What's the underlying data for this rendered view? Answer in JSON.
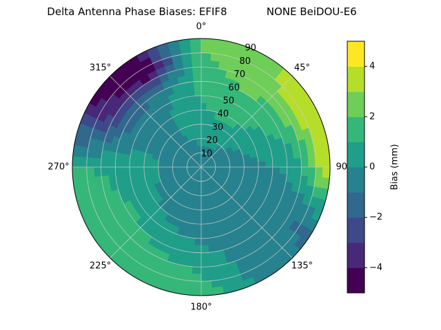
{
  "figure": {
    "background": "#ffffff"
  },
  "chart_data": {
    "type": "heatmap",
    "projection": "polar-skyplot",
    "title": "Delta Antenna Phase Biases: EFIF8            NONE BeiDOU-E6",
    "rmax": 90,
    "grid_color": "#cccccc",
    "angular_ticks": [
      {
        "deg": 0,
        "label": "0°"
      },
      {
        "deg": 45,
        "label": "45°"
      },
      {
        "deg": 90,
        "label": "90°"
      },
      {
        "deg": 135,
        "label": "135°"
      },
      {
        "deg": 180,
        "label": "180°"
      },
      {
        "deg": 225,
        "label": "225°"
      },
      {
        "deg": 270,
        "label": "270°"
      },
      {
        "deg": 315,
        "label": "315°"
      }
    ],
    "radial_ticks": [
      10,
      20,
      30,
      40,
      50,
      60,
      70,
      80,
      90
    ],
    "radial_label_azimuth_deg": 22.5,
    "levels": [
      -5,
      -4,
      -3,
      -2,
      -1,
      0,
      1,
      2,
      3,
      4,
      5
    ],
    "level_colors": [
      "#440154",
      "#482878",
      "#3e4989",
      "#31688e",
      "#26828e",
      "#1f9e89",
      "#35b779",
      "#6ece58",
      "#b5de2b",
      "#fde725"
    ],
    "azimuth_bins_deg": [
      0,
      30,
      60,
      90,
      120,
      150,
      180,
      210,
      240,
      270,
      300,
      330
    ],
    "radius_bin_centers": [
      5,
      15,
      25,
      35,
      45,
      55,
      65,
      75,
      85
    ],
    "bias_values_mm": [
      [
        -0.5,
        -0.5,
        -0.5,
        -0.5,
        -0.5,
        -0.5,
        -0.5,
        -0.5,
        -0.5,
        -0.5,
        -0.5,
        -0.5
      ],
      [
        0.0,
        0.0,
        -0.5,
        -0.5,
        -0.5,
        -0.5,
        -0.5,
        -0.5,
        -0.5,
        -0.5,
        -0.5,
        -0.5
      ],
      [
        0.5,
        0.5,
        0.0,
        -0.5,
        -0.5,
        -0.5,
        -0.5,
        -0.5,
        -0.5,
        -0.5,
        -0.5,
        0.0
      ],
      [
        0.5,
        1.2,
        0.5,
        -0.5,
        -0.5,
        -0.5,
        -0.5,
        -0.5,
        0.0,
        0.5,
        -0.5,
        0.0
      ],
      [
        1.0,
        1.5,
        0.8,
        0.0,
        -0.5,
        -0.5,
        -0.5,
        0.0,
        0.5,
        0.5,
        -0.5,
        0.0
      ],
      [
        1.2,
        1.8,
        1.2,
        0.0,
        -0.5,
        -0.5,
        0.0,
        0.5,
        1.0,
        0.5,
        -1.0,
        -0.5
      ],
      [
        1.5,
        2.2,
        2.0,
        0.5,
        -0.8,
        -0.5,
        0.5,
        1.0,
        1.5,
        0.8,
        -2.0,
        -2.0
      ],
      [
        1.8,
        2.8,
        3.2,
        1.5,
        -1.0,
        -0.5,
        1.0,
        1.5,
        1.5,
        1.0,
        -3.5,
        -5.0
      ],
      [
        2.0,
        2.5,
        3.8,
        3.6,
        -1.2,
        -0.5,
        1.5,
        1.8,
        1.8,
        1.0,
        -4.0,
        -4.5
      ]
    ],
    "colorbar": {
      "label": "Bias (mm)",
      "vmin": -5,
      "vmax": 5,
      "ticks": [
        {
          "value": 4,
          "label": "4"
        },
        {
          "value": 2,
          "label": "2"
        },
        {
          "value": 0,
          "label": "0"
        },
        {
          "value": -2,
          "label": "−2"
        },
        {
          "value": -4,
          "label": "−4"
        }
      ]
    }
  }
}
